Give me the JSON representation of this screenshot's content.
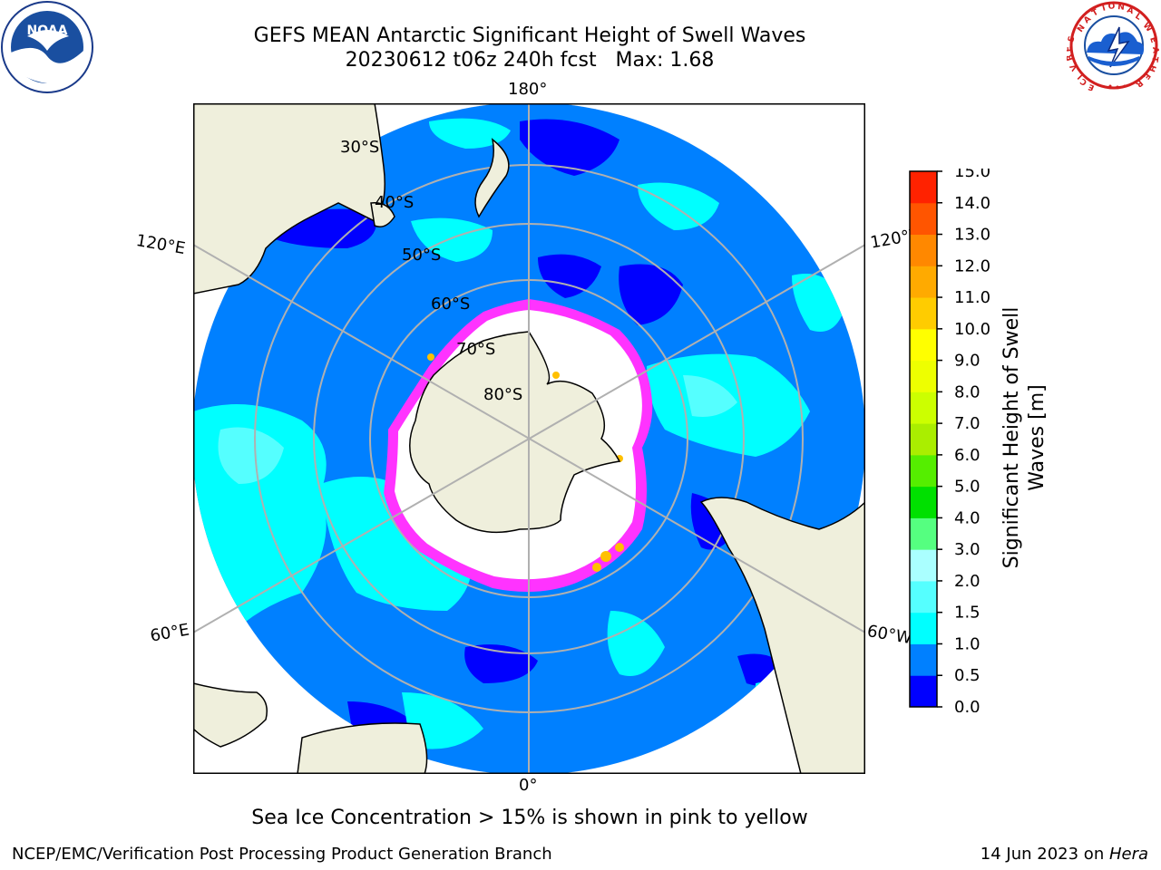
{
  "title": {
    "line1": "GEFS MEAN Antarctic Significant Height of Swell Waves",
    "line2": "20230612 t06z 240h fcst   Max: 1.68"
  },
  "logos": {
    "left": {
      "name": "noaa-logo",
      "text": "NOAA"
    },
    "right": {
      "name": "nws-logo",
      "text": "NATIONAL WEATHER SERVICE"
    }
  },
  "map": {
    "projection": "south-polar-stereographic",
    "longitude_labels": {
      "top": "180°",
      "bottom": "0°",
      "upper_left": "120°E",
      "upper_right": "120°W",
      "lower_left": "60°E",
      "lower_right": "60°W"
    },
    "latitude_labels": [
      "30°S",
      "40°S",
      "50°S",
      "60°S",
      "70°S",
      "80°S"
    ],
    "colors": {
      "ocean_dark_blue": "#0000ff",
      "ocean_mid_blue": "#0080ff",
      "ocean_cyan": "#00ffff",
      "ocean_light_cyan": "#55ffff",
      "land": "#efefdc",
      "ice": "#ffffff",
      "ice_edge_pink": "#ff33ff",
      "ice_edge_yellow": "#ffc000",
      "graticule": "#b0b0b0"
    }
  },
  "colorbar": {
    "label_line1": "Significant Height of Swell",
    "label_line2": "Waves [m]",
    "ticks": [
      "0.0",
      "0.5",
      "1.0",
      "1.5",
      "2.0",
      "3.0",
      "4.0",
      "5.0",
      "6.0",
      "7.0",
      "8.0",
      "9.0",
      "10.0",
      "11.0",
      "12.0",
      "13.0",
      "14.0",
      "15.0"
    ],
    "colors": [
      "#0000ff",
      "#0080ff",
      "#00ffff",
      "#55ffff",
      "#aaffff",
      "#55ff80",
      "#00e000",
      "#55ee00",
      "#aaee00",
      "#ccff00",
      "#eeff00",
      "#ffff00",
      "#ffcc00",
      "#ffaa00",
      "#ff8800",
      "#ff5500",
      "#ff2200",
      "#ff0000"
    ]
  },
  "footer": {
    "note": "Sea Ice Concentration > 15% is shown in pink to yellow",
    "left": "NCEP/EMC/Verification Post Processing Product Generation Branch",
    "right_prefix": "14 Jun 2023 on ",
    "right_host": "Hera"
  }
}
